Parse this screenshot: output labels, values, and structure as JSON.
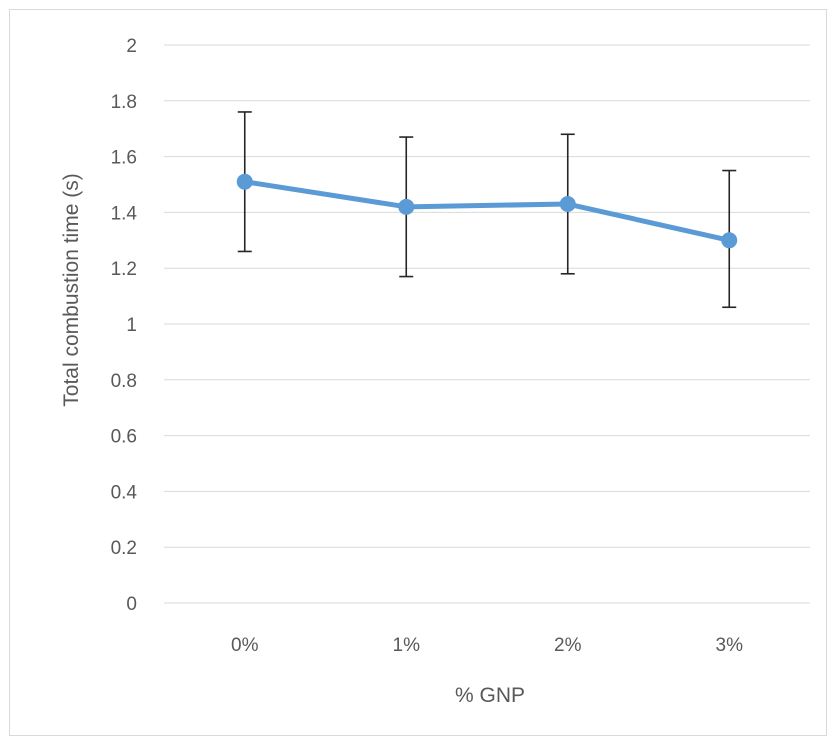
{
  "chart_data": {
    "type": "line",
    "title": "",
    "xlabel": "% GNP",
    "ylabel": "Total combustion time (s)",
    "categories": [
      "0%",
      "1%",
      "2%",
      "3%"
    ],
    "series": [
      {
        "values": [
          1.51,
          1.42,
          1.43,
          1.3
        ],
        "error_low": [
          1.26,
          1.17,
          1.18,
          1.06
        ],
        "error_high": [
          1.76,
          1.67,
          1.68,
          1.55
        ],
        "color": "#5b9bd5"
      }
    ],
    "ylim": [
      0,
      2
    ],
    "yticks": [
      "0",
      "0.2",
      "0.4",
      "0.6",
      "0.8",
      "1",
      "1.2",
      "1.4",
      "1.6",
      "1.8",
      "2"
    ],
    "grid": true,
    "legend": "none"
  }
}
